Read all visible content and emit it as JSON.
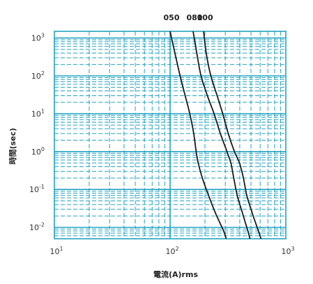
{
  "chart_data": {
    "type": "line",
    "xlabel": "電流(A)rms",
    "ylabel": "時間(sec)",
    "x_scale": "log",
    "y_scale": "log",
    "xlim": [
      10,
      1000
    ],
    "ylim": [
      0.005,
      1500
    ],
    "grid": true,
    "x_ticks": [
      {
        "base": "10",
        "exp": "1"
      },
      {
        "base": "10",
        "exp": "2"
      },
      {
        "base": "10",
        "exp": "3"
      }
    ],
    "y_ticks": [
      {
        "base": "10",
        "exp": "3"
      },
      {
        "base": "10",
        "exp": "2"
      },
      {
        "base": "10",
        "exp": "1"
      },
      {
        "base": "10",
        "exp": "0"
      },
      {
        "base": "10",
        "exp": "-1"
      },
      {
        "base": "10",
        "exp": "-2"
      }
    ],
    "series": [
      {
        "name": "050",
        "points": [
          [
            100,
            1500
          ],
          [
            110,
            400
          ],
          [
            122,
            100
          ],
          [
            135,
            30
          ],
          [
            148,
            10
          ],
          [
            160,
            3
          ],
          [
            168,
            1
          ],
          [
            175,
            0.5
          ],
          [
            190,
            0.2
          ],
          [
            215,
            0.07
          ],
          [
            245,
            0.025
          ],
          [
            290,
            0.008
          ],
          [
            305,
            0.005
          ]
        ]
      },
      {
        "name": "080",
        "points": [
          [
            158,
            1500
          ],
          [
            170,
            400
          ],
          [
            185,
            100
          ],
          [
            210,
            30
          ],
          [
            240,
            10
          ],
          [
            272,
            3
          ],
          [
            310,
            1
          ],
          [
            335,
            0.5
          ],
          [
            355,
            0.2
          ],
          [
            380,
            0.07
          ],
          [
            420,
            0.025
          ],
          [
            470,
            0.008
          ],
          [
            490,
            0.005
          ]
        ]
      },
      {
        "name": "100",
        "points": [
          [
            195,
            1500
          ],
          [
            205,
            400
          ],
          [
            225,
            100
          ],
          [
            255,
            30
          ],
          [
            285,
            10
          ],
          [
            318,
            3
          ],
          [
            360,
            1
          ],
          [
            398,
            0.5
          ],
          [
            430,
            0.2
          ],
          [
            460,
            0.07
          ],
          [
            510,
            0.025
          ],
          [
            580,
            0.008
          ],
          [
            610,
            0.005
          ]
        ]
      }
    ],
    "colors": {
      "grid": "#22a3c0",
      "curve": "#1a1a1a",
      "text": "#333333"
    }
  }
}
